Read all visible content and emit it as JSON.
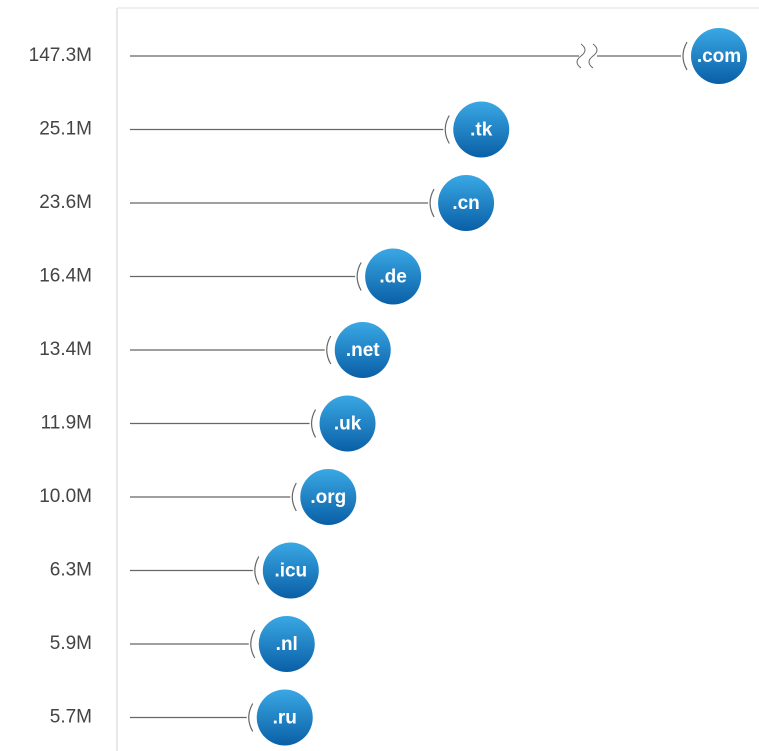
{
  "chart_data": {
    "type": "bar",
    "title": "",
    "xlabel": "",
    "ylabel": "",
    "categories": [
      ".com",
      ".tk",
      ".cn",
      ".de",
      ".net",
      ".uk",
      ".org",
      ".icu",
      ".nl",
      ".ru"
    ],
    "values": [
      147.3,
      25.1,
      23.6,
      16.4,
      13.4,
      11.9,
      10.0,
      6.3,
      5.9,
      5.7
    ],
    "value_labels": [
      "147.3M",
      "25.1M",
      "23.6M",
      "16.4M",
      "13.4M",
      "11.9M",
      "10.0M",
      "6.3M",
      "5.9M",
      "5.7M"
    ],
    "axis_break": true,
    "orientation": "horizontal",
    "colors": {
      "bubble_top": "#3aa8e4",
      "bubble_bottom": "#0a5fa6",
      "line": "#666666",
      "axis": "#d0d0d0"
    }
  }
}
